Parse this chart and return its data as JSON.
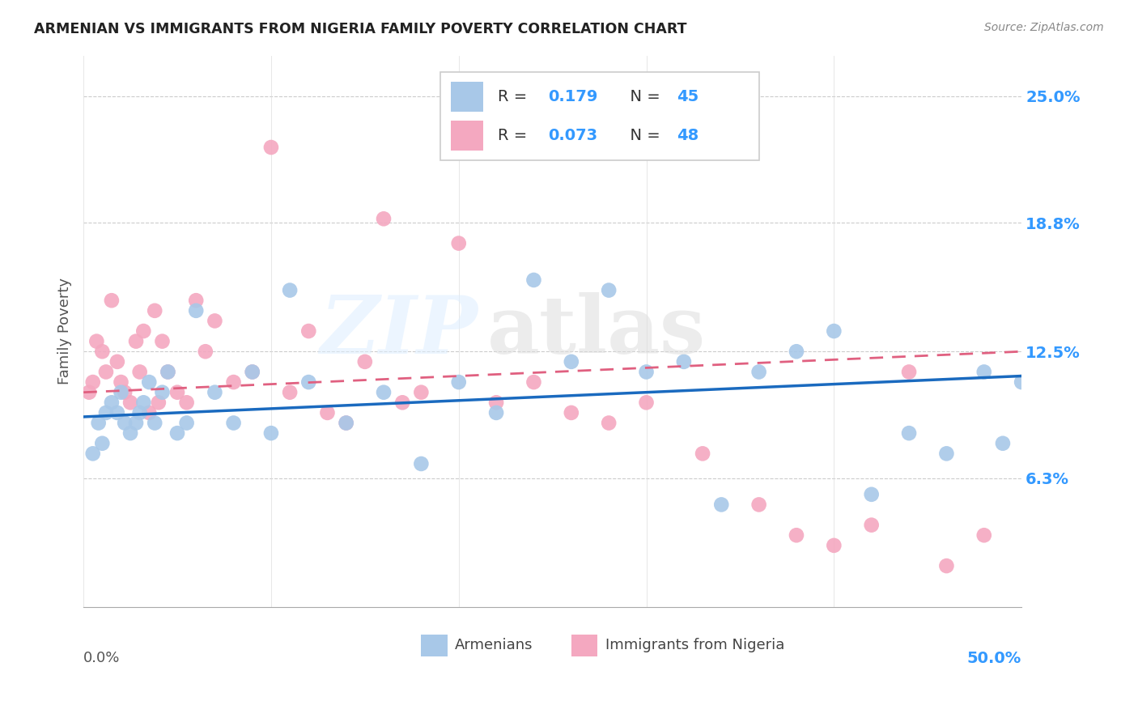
{
  "title": "ARMENIAN VS IMMIGRANTS FROM NIGERIA FAMILY POVERTY CORRELATION CHART",
  "source": "Source: ZipAtlas.com",
  "ylabel": "Family Poverty",
  "ytick_labels": [
    "6.3%",
    "12.5%",
    "18.8%",
    "25.0%"
  ],
  "ytick_values": [
    6.3,
    12.5,
    18.8,
    25.0
  ],
  "xlim": [
    0,
    50
  ],
  "ylim": [
    0,
    27
  ],
  "armenian_color": "#a8c8e8",
  "nigeria_color": "#f4a8c0",
  "armenian_line_color": "#1a6abf",
  "nigeria_line_color": "#e06080",
  "armenian_points_x": [
    0.5,
    0.8,
    1.0,
    1.2,
    1.5,
    1.8,
    2.0,
    2.2,
    2.5,
    2.8,
    3.0,
    3.2,
    3.5,
    3.8,
    4.2,
    4.5,
    5.0,
    5.5,
    6.0,
    7.0,
    8.0,
    9.0,
    10.0,
    11.0,
    12.0,
    14.0,
    16.0,
    18.0,
    20.0,
    22.0,
    24.0,
    26.0,
    28.0,
    30.0,
    32.0,
    34.0,
    36.0,
    38.0,
    40.0,
    42.0,
    44.0,
    46.0,
    48.0,
    49.0,
    50.0
  ],
  "armenian_points_y": [
    7.5,
    9.0,
    8.0,
    9.5,
    10.0,
    9.5,
    10.5,
    9.0,
    8.5,
    9.0,
    9.5,
    10.0,
    11.0,
    9.0,
    10.5,
    11.5,
    8.5,
    9.0,
    14.5,
    10.5,
    9.0,
    11.5,
    8.5,
    15.5,
    11.0,
    9.0,
    10.5,
    7.0,
    11.0,
    9.5,
    16.0,
    12.0,
    15.5,
    11.5,
    12.0,
    5.0,
    11.5,
    12.5,
    13.5,
    5.5,
    8.5,
    7.5,
    11.5,
    8.0,
    11.0
  ],
  "nigeria_points_x": [
    0.3,
    0.5,
    0.7,
    1.0,
    1.2,
    1.5,
    1.8,
    2.0,
    2.2,
    2.5,
    2.8,
    3.0,
    3.2,
    3.5,
    3.8,
    4.0,
    4.2,
    4.5,
    5.0,
    5.5,
    6.0,
    6.5,
    7.0,
    8.0,
    9.0,
    10.0,
    11.0,
    12.0,
    13.0,
    14.0,
    15.0,
    16.0,
    17.0,
    18.0,
    20.0,
    22.0,
    24.0,
    26.0,
    28.0,
    30.0,
    33.0,
    36.0,
    38.0,
    40.0,
    42.0,
    44.0,
    46.0,
    48.0
  ],
  "nigeria_points_y": [
    10.5,
    11.0,
    13.0,
    12.5,
    11.5,
    15.0,
    12.0,
    11.0,
    10.5,
    10.0,
    13.0,
    11.5,
    13.5,
    9.5,
    14.5,
    10.0,
    13.0,
    11.5,
    10.5,
    10.0,
    15.0,
    12.5,
    14.0,
    11.0,
    11.5,
    22.5,
    10.5,
    13.5,
    9.5,
    9.0,
    12.0,
    19.0,
    10.0,
    10.5,
    17.8,
    10.0,
    11.0,
    9.5,
    9.0,
    10.0,
    7.5,
    5.0,
    3.5,
    3.0,
    4.0,
    11.5,
    2.0,
    3.5
  ],
  "armenian_line_slope": 0.04,
  "armenian_line_intercept": 9.3,
  "nigeria_line_slope": 0.04,
  "nigeria_line_intercept": 10.5
}
